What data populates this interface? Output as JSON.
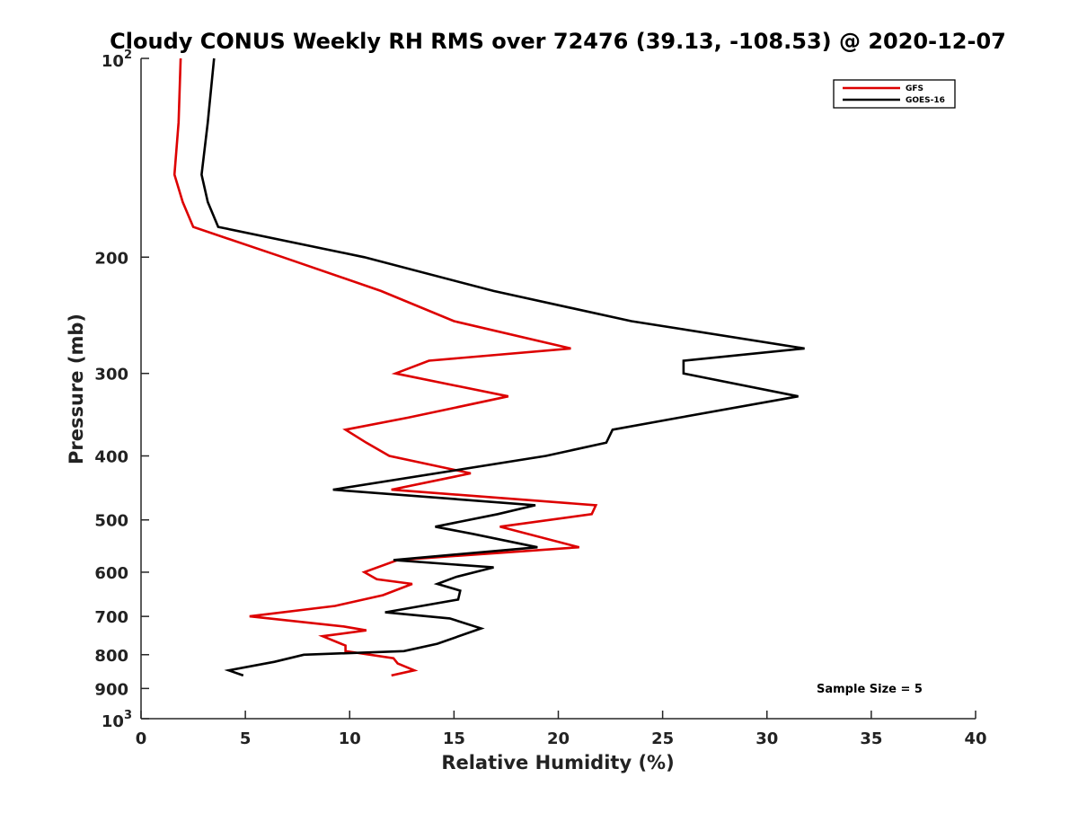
{
  "chart_data": {
    "type": "line",
    "title": "Cloudy CONUS Weekly RH RMS over 72476 (39.13, -108.53) @ 2020-12-07",
    "xlabel": "Relative Humidity (%)",
    "ylabel": "Pressure (mb)",
    "xlim": [
      0,
      40
    ],
    "ylim": [
      100,
      1000
    ],
    "y_scale": "log",
    "y_reversed": true,
    "grid": false,
    "legend_position": "top-right",
    "x_ticks": [
      {
        "value": 0,
        "label": "0"
      },
      {
        "value": 5,
        "label": "5"
      },
      {
        "value": 10,
        "label": "10"
      },
      {
        "value": 15,
        "label": "15"
      },
      {
        "value": 20,
        "label": "20"
      },
      {
        "value": 25,
        "label": "25"
      },
      {
        "value": 30,
        "label": "30"
      },
      {
        "value": 35,
        "label": "35"
      },
      {
        "value": 40,
        "label": "40"
      }
    ],
    "y_ticks": [
      {
        "value": 100,
        "base": "10",
        "exp": "2"
      },
      {
        "value": 200,
        "label": "200"
      },
      {
        "value": 300,
        "label": "300"
      },
      {
        "value": 400,
        "label": "400"
      },
      {
        "value": 500,
        "label": "500"
      },
      {
        "value": 600,
        "label": "600"
      },
      {
        "value": 700,
        "label": "700"
      },
      {
        "value": 800,
        "label": "800"
      },
      {
        "value": 900,
        "label": "900"
      },
      {
        "value": 1000,
        "base": "10",
        "exp": "3"
      }
    ],
    "series": [
      {
        "name": "GFS",
        "color": "#dd0000",
        "points": [
          [
            1.9,
            100
          ],
          [
            1.8,
            125
          ],
          [
            1.6,
            150
          ],
          [
            2.0,
            165
          ],
          [
            2.5,
            180
          ],
          [
            6.8,
            200
          ],
          [
            11.5,
            225
          ],
          [
            15.0,
            250
          ],
          [
            20.6,
            275
          ],
          [
            13.8,
            287
          ],
          [
            12.2,
            300
          ],
          [
            17.6,
            325
          ],
          [
            12.8,
            350
          ],
          [
            9.8,
            365
          ],
          [
            10.8,
            382
          ],
          [
            11.9,
            400
          ],
          [
            15.8,
            425
          ],
          [
            12.0,
            450
          ],
          [
            21.8,
            475
          ],
          [
            21.6,
            490
          ],
          [
            17.2,
            512
          ],
          [
            21.0,
            550
          ],
          [
            12.3,
            575
          ],
          [
            10.7,
            600
          ],
          [
            11.3,
            615
          ],
          [
            13.0,
            625
          ],
          [
            11.6,
            650
          ],
          [
            9.3,
            675
          ],
          [
            5.2,
            700
          ],
          [
            9.7,
            725
          ],
          [
            10.8,
            735
          ],
          [
            8.7,
            750
          ],
          [
            9.8,
            775
          ],
          [
            9.8,
            790
          ],
          [
            12.1,
            810
          ],
          [
            12.3,
            825
          ],
          [
            13.1,
            845
          ],
          [
            12.0,
            860
          ]
        ]
      },
      {
        "name": "GOES-16",
        "color": "#000000",
        "points": [
          [
            3.5,
            100
          ],
          [
            3.2,
            125
          ],
          [
            2.9,
            150
          ],
          [
            3.2,
            165
          ],
          [
            3.7,
            180
          ],
          [
            10.7,
            200
          ],
          [
            16.9,
            225
          ],
          [
            23.5,
            250
          ],
          [
            31.8,
            275
          ],
          [
            26.0,
            287
          ],
          [
            26.0,
            300
          ],
          [
            31.5,
            325
          ],
          [
            25.8,
            350
          ],
          [
            22.6,
            365
          ],
          [
            22.3,
            382
          ],
          [
            19.4,
            400
          ],
          [
            9.2,
            450
          ],
          [
            18.9,
            475
          ],
          [
            17.1,
            490
          ],
          [
            14.1,
            512
          ],
          [
            15.9,
            525
          ],
          [
            19.0,
            550
          ],
          [
            12.1,
            575
          ],
          [
            16.9,
            590
          ],
          [
            15.1,
            610
          ],
          [
            14.2,
            625
          ],
          [
            15.3,
            640
          ],
          [
            15.2,
            660
          ],
          [
            11.7,
            690
          ],
          [
            14.8,
            705
          ],
          [
            16.3,
            730
          ],
          [
            14.2,
            770
          ],
          [
            12.6,
            790
          ],
          [
            7.8,
            800
          ],
          [
            6.4,
            820
          ],
          [
            4.2,
            845
          ],
          [
            4.9,
            860
          ]
        ]
      }
    ],
    "annotation": "Sample Size = 5"
  }
}
